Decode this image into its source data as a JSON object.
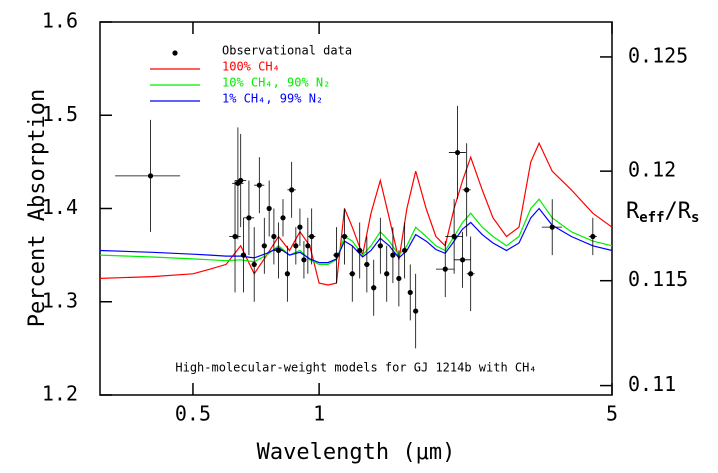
{
  "chart_data": {
    "type": "line",
    "xlabel": "Wavelength (μm)",
    "ylabel": "Percent Absorption",
    "y2label": [
      "R",
      "eff",
      "/R",
      "s"
    ],
    "annotation": "High-molecular-weight models for GJ 1214b with CH₄",
    "xscale": "log",
    "xlim": [
      0.3,
      5
    ],
    "xticks": [
      0.5,
      1,
      5
    ],
    "ylim": [
      1.2,
      1.6
    ],
    "yticks": [
      1.2,
      1.3,
      1.4,
      1.5,
      1.6
    ],
    "y2scale": "square-percent",
    "y2lim": [
      0.10954,
      0.12649
    ],
    "y2ticks": [
      0.11,
      0.115,
      0.12,
      0.125
    ],
    "legend": "upper left",
    "observations": {
      "name": "Observational data",
      "color": "#000000",
      "x": [
        0.396,
        0.63,
        0.64,
        0.65,
        0.66,
        0.68,
        0.7,
        0.72,
        0.74,
        0.76,
        0.78,
        0.8,
        0.82,
        0.84,
        0.86,
        0.88,
        0.9,
        0.92,
        0.94,
        0.96,
        1.1,
        1.15,
        1.2,
        1.25,
        1.3,
        1.35,
        1.4,
        1.45,
        1.5,
        1.55,
        1.6,
        1.65,
        1.7,
        2.0,
        2.1,
        2.14,
        2.2,
        2.25,
        2.3,
        3.6,
        4.5
      ],
      "y": [
        1.435,
        1.37,
        1.427,
        1.43,
        1.35,
        1.39,
        1.34,
        1.425,
        1.36,
        1.4,
        1.37,
        1.355,
        1.39,
        1.33,
        1.42,
        1.36,
        1.38,
        1.345,
        1.36,
        1.37,
        1.35,
        1.37,
        1.33,
        1.355,
        1.34,
        1.315,
        1.36,
        1.33,
        1.35,
        1.325,
        1.355,
        1.31,
        1.29,
        1.335,
        1.37,
        1.46,
        1.345,
        1.42,
        1.33,
        1.38,
        1.37
      ],
      "xerr": [
        0.07,
        0.02,
        0.02,
        0.02,
        0.01,
        0.02,
        0.01,
        0.02,
        0.01,
        0.01,
        0.01,
        0.02,
        0.01,
        0.01,
        0.02,
        0.01,
        0.01,
        0.01,
        0.01,
        0.02,
        0.02,
        0.02,
        0.02,
        0.02,
        0.02,
        0.02,
        0.02,
        0.02,
        0.02,
        0.02,
        0.02,
        0.02,
        0.02,
        0.1,
        0.1,
        0.1,
        0.1,
        0.05,
        0.05,
        0.2,
        0.1
      ],
      "yerr": [
        0.06,
        0.06,
        0.06,
        0.05,
        0.04,
        0.04,
        0.04,
        0.03,
        0.03,
        0.03,
        0.03,
        0.03,
        0.02,
        0.03,
        0.03,
        0.02,
        0.02,
        0.02,
        0.03,
        0.03,
        0.03,
        0.03,
        0.03,
        0.03,
        0.03,
        0.03,
        0.03,
        0.03,
        0.03,
        0.03,
        0.03,
        0.03,
        0.04,
        0.03,
        0.04,
        0.05,
        0.03,
        0.05,
        0.04,
        0.03,
        0.02
      ]
    },
    "x": [
      0.3,
      0.4,
      0.5,
      0.55,
      0.6,
      0.65,
      0.7,
      0.75,
      0.8,
      0.85,
      0.9,
      0.95,
      1.0,
      1.05,
      1.1,
      1.15,
      1.2,
      1.27,
      1.33,
      1.4,
      1.47,
      1.55,
      1.62,
      1.7,
      1.8,
      1.9,
      2.0,
      2.1,
      2.2,
      2.3,
      2.45,
      2.6,
      2.8,
      3.0,
      3.2,
      3.35,
      3.6,
      4.0,
      4.5,
      5.0
    ],
    "series": [
      {
        "name": "100% CH₄",
        "color": "#ff0000",
        "values": [
          1.325,
          1.327,
          1.33,
          1.335,
          1.34,
          1.36,
          1.33,
          1.35,
          1.37,
          1.355,
          1.375,
          1.36,
          1.32,
          1.318,
          1.32,
          1.4,
          1.38,
          1.35,
          1.395,
          1.43,
          1.39,
          1.345,
          1.4,
          1.44,
          1.4,
          1.37,
          1.36,
          1.4,
          1.43,
          1.455,
          1.42,
          1.39,
          1.37,
          1.38,
          1.45,
          1.47,
          1.44,
          1.42,
          1.395,
          1.38
        ]
      },
      {
        "name": "10% CH₄, 90% N₂",
        "color": "#00ee00",
        "values": [
          1.35,
          1.348,
          1.346,
          1.345,
          1.344,
          1.345,
          1.343,
          1.35,
          1.36,
          1.35,
          1.355,
          1.345,
          1.34,
          1.34,
          1.345,
          1.37,
          1.365,
          1.35,
          1.36,
          1.375,
          1.365,
          1.35,
          1.36,
          1.38,
          1.37,
          1.36,
          1.355,
          1.37,
          1.385,
          1.395,
          1.38,
          1.37,
          1.36,
          1.37,
          1.4,
          1.41,
          1.39,
          1.375,
          1.365,
          1.36
        ]
      },
      {
        "name": "1% CH₄, 99% N₂",
        "color": "#0000ff",
        "values": [
          1.355,
          1.353,
          1.351,
          1.35,
          1.349,
          1.349,
          1.347,
          1.352,
          1.358,
          1.35,
          1.353,
          1.346,
          1.342,
          1.342,
          1.346,
          1.365,
          1.36,
          1.348,
          1.355,
          1.368,
          1.36,
          1.347,
          1.355,
          1.372,
          1.365,
          1.356,
          1.352,
          1.365,
          1.378,
          1.385,
          1.372,
          1.363,
          1.355,
          1.363,
          1.39,
          1.4,
          1.382,
          1.37,
          1.36,
          1.355
        ]
      }
    ]
  }
}
